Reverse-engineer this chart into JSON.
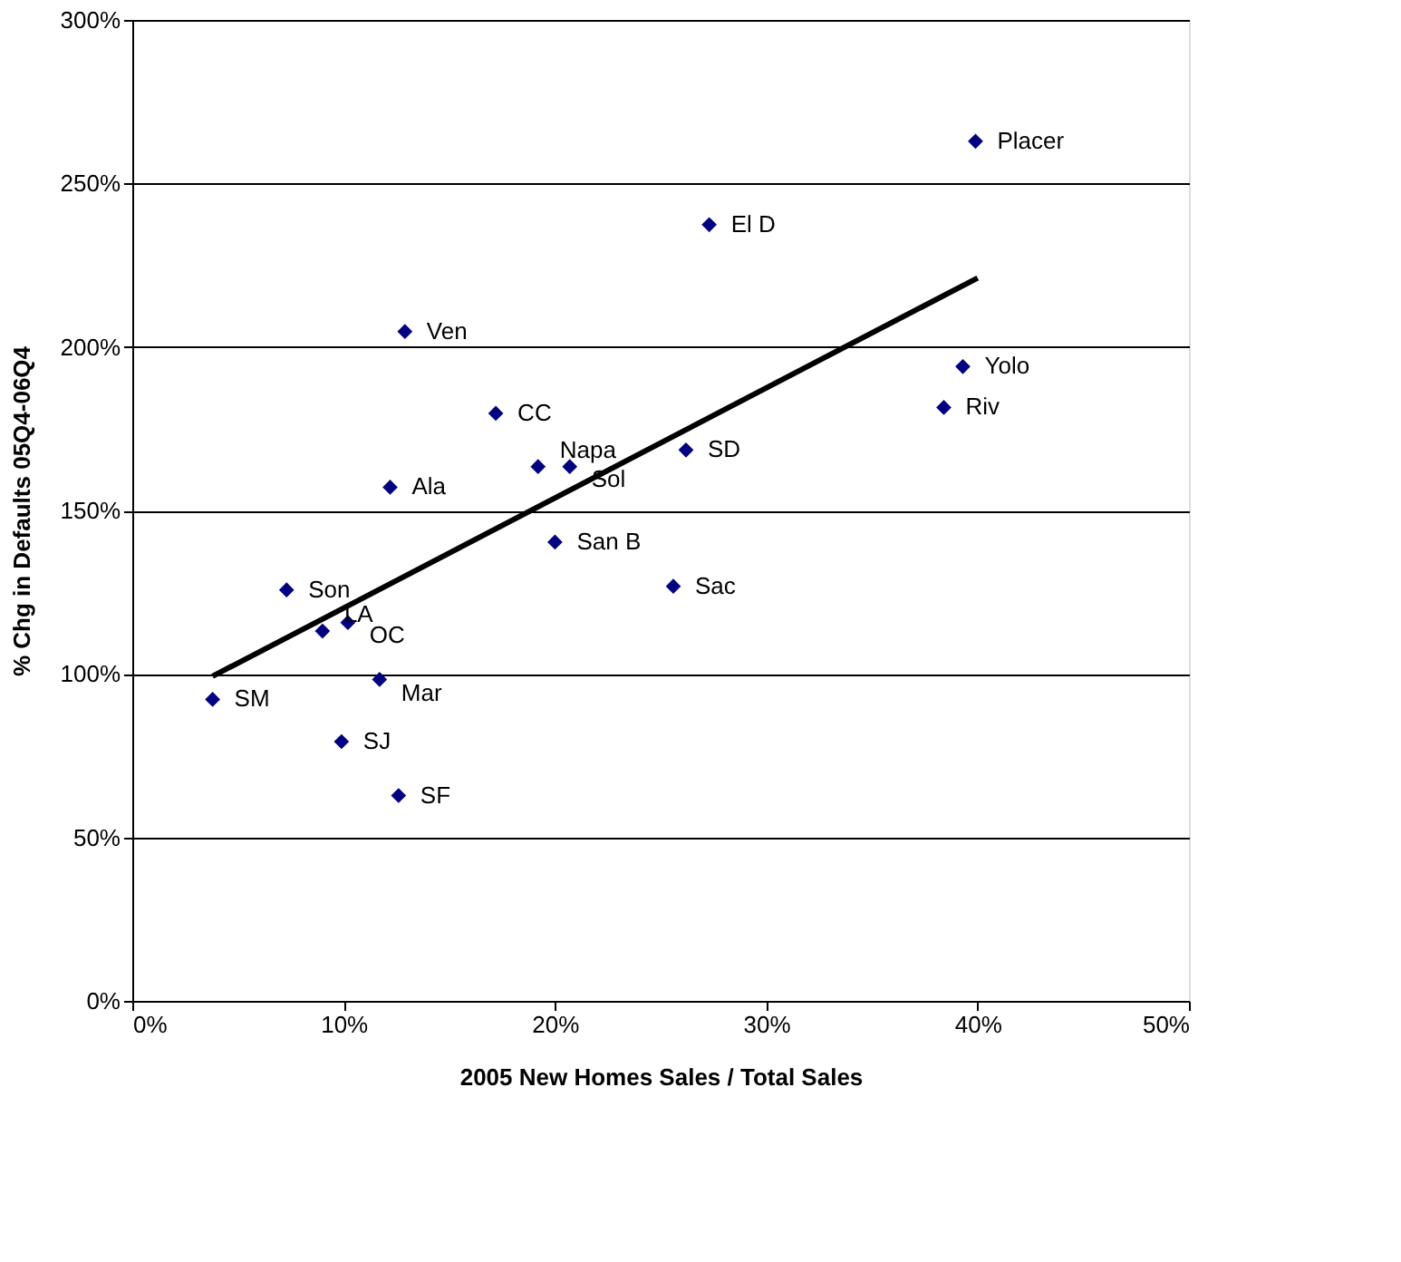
{
  "chart_data": {
    "type": "scatter",
    "xlabel": "2005 New Homes Sales / Total Sales",
    "ylabel": "% Chg in Defaults 05Q4-06Q4",
    "series": [
      {
        "color": "#000080",
        "marker": "diamond",
        "x": [
          39.9,
          27.3,
          12.9,
          17.2,
          19.2,
          20.7,
          26.2,
          12.2,
          20.0,
          25.6,
          39.3,
          38.4,
          7.3,
          9.0,
          10.2,
          3.8,
          11.7,
          9.9,
          12.6
        ],
        "values": [
          262.9,
          237.4,
          204.7,
          179.7,
          163.4,
          163.4,
          168.5,
          157.1,
          140.3,
          126.8,
          194.0,
          181.5,
          125.7,
          113.1,
          115.7,
          92.2,
          98.3,
          79.3,
          62.8
        ]
      },
      {
        "type": "line",
        "color": "#000000",
        "line_style": "solid",
        "x": [
          3.8,
          40.0
        ],
        "values": [
          99.3,
          221.1
        ]
      }
    ],
    "annotations": [
      {
        "text": "Placer",
        "x": 39.9,
        "y": 262.9
      },
      {
        "text": "El D",
        "x": 27.3,
        "y": 237.4
      },
      {
        "text": "Ven",
        "x": 12.9,
        "y": 204.7
      },
      {
        "text": "CC",
        "x": 17.2,
        "y": 179.7
      },
      {
        "text": "Napa",
        "x": 19.2,
        "y": 163.4
      },
      {
        "text": "Sol",
        "x": 20.7,
        "y": 163.4
      },
      {
        "text": "SD",
        "x": 26.2,
        "y": 168.5
      },
      {
        "text": "Ala",
        "x": 12.2,
        "y": 157.1
      },
      {
        "text": "San B",
        "x": 20.0,
        "y": 140.3
      },
      {
        "text": "Sac",
        "x": 25.6,
        "y": 126.8
      },
      {
        "text": "Yolo",
        "x": 39.3,
        "y": 194.0
      },
      {
        "text": "Riv",
        "x": 38.4,
        "y": 181.5
      },
      {
        "text": "Son",
        "x": 7.3,
        "y": 125.7
      },
      {
        "text": "LA",
        "x": 9.0,
        "y": 113.1
      },
      {
        "text": "OC",
        "x": 10.2,
        "y": 115.7
      },
      {
        "text": "SM",
        "x": 3.8,
        "y": 92.2
      },
      {
        "text": "Mar",
        "x": 11.7,
        "y": 98.3
      },
      {
        "text": "SJ",
        "x": 9.9,
        "y": 79.3
      },
      {
        "text": "SF",
        "x": 12.6,
        "y": 62.8
      }
    ],
    "xlim": [
      0,
      50
    ],
    "xticks": [
      {
        "value": 0,
        "label": "0%"
      },
      {
        "value": 10,
        "label": "10%"
      },
      {
        "value": 20,
        "label": "20%"
      },
      {
        "value": 30,
        "label": "30%"
      },
      {
        "value": 40,
        "label": "40%"
      },
      {
        "value": 50,
        "label": "50%"
      }
    ],
    "ylim": [
      0,
      300
    ],
    "yticks": [
      {
        "value": 0,
        "label": "0%"
      },
      {
        "value": 50,
        "label": "50%"
      },
      {
        "value": 100,
        "label": "100%"
      },
      {
        "value": 150,
        "label": "150%"
      },
      {
        "value": 200,
        "label": "200%"
      },
      {
        "value": 250,
        "label": "250%"
      },
      {
        "value": 300,
        "label": "300%"
      }
    ],
    "grid": "y"
  }
}
